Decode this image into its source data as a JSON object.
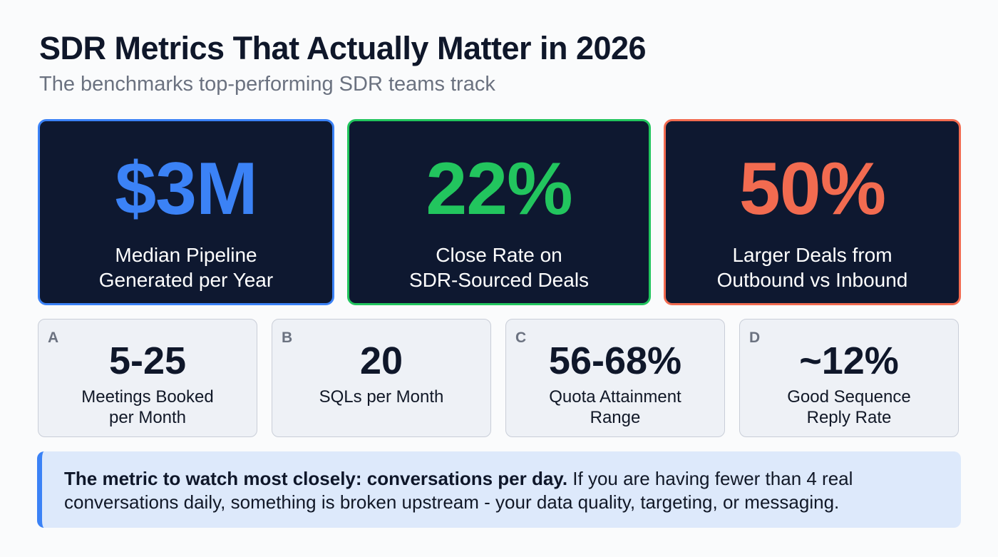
{
  "header": {
    "title": "SDR Metrics That Actually Matter in 2026",
    "subtitle": "The benchmarks top-performing SDR teams track"
  },
  "highlight_cards": [
    {
      "value": "$3M",
      "label_line1": "Median Pipeline",
      "label_line2": "Generated per Year",
      "color": "#3b82f6"
    },
    {
      "value": "22%",
      "label_line1": "Close Rate on",
      "label_line2": "SDR-Sourced Deals",
      "color": "#22c55e"
    },
    {
      "value": "50%",
      "label_line1": "Larger Deals from",
      "label_line2": "Outbound vs Inbound",
      "color": "#f26b50"
    }
  ],
  "metric_cards": [
    {
      "letter": "A",
      "value": "5-25",
      "label_line1": "Meetings Booked",
      "label_line2": "per Month"
    },
    {
      "letter": "B",
      "value": "20",
      "label_line1": "SQLs per Month",
      "label_line2": ""
    },
    {
      "letter": "C",
      "value": "56-68%",
      "label_line1": "Quota Attainment",
      "label_line2": "Range"
    },
    {
      "letter": "D",
      "value": "~12%",
      "label_line1": "Good Sequence",
      "label_line2": "Reply Rate"
    }
  ],
  "callout": {
    "bold": "The metric to watch most closely: conversations per day.",
    "text": " If you are having fewer than 4 real conversations daily, something is broken upstream - your data quality, targeting, or messaging.",
    "accent": "#3b82f6"
  }
}
